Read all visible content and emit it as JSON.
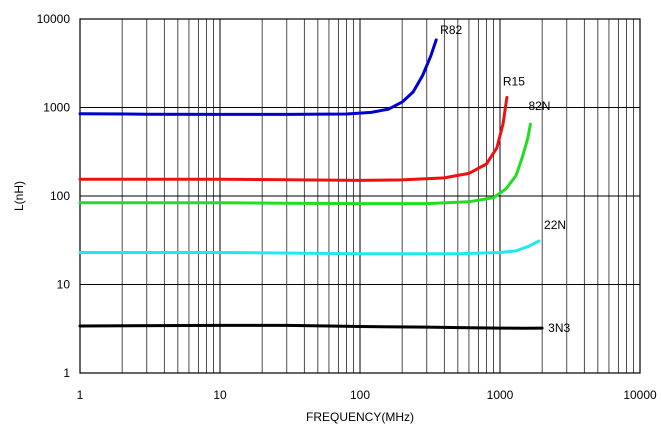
{
  "chart_data": {
    "type": "line",
    "xlabel": "FREQUENCY(MHz)",
    "ylabel": "L(nH)",
    "xscale": "log",
    "yscale": "log",
    "xlim": [
      1,
      10000
    ],
    "ylim": [
      1,
      10000
    ],
    "grid": true,
    "legend": "labels next to curve ends",
    "x_tick_labels": [
      "1",
      "10",
      "100",
      "1000",
      "10000"
    ],
    "y_tick_labels": [
      "1",
      "10",
      "100",
      "1000",
      "10000"
    ],
    "series": [
      {
        "name": "R82",
        "color": "#0000cc",
        "points": [
          [
            1,
            850
          ],
          [
            3,
            840
          ],
          [
            10,
            835
          ],
          [
            30,
            835
          ],
          [
            80,
            845
          ],
          [
            120,
            880
          ],
          [
            160,
            960
          ],
          [
            200,
            1150
          ],
          [
            240,
            1500
          ],
          [
            280,
            2300
          ],
          [
            320,
            3800
          ],
          [
            350,
            5800
          ]
        ]
      },
      {
        "name": "R15",
        "color": "#ee1111",
        "points": [
          [
            1,
            155
          ],
          [
            10,
            155
          ],
          [
            30,
            153
          ],
          [
            100,
            150
          ],
          [
            200,
            152
          ],
          [
            400,
            160
          ],
          [
            600,
            180
          ],
          [
            800,
            230
          ],
          [
            950,
            350
          ],
          [
            1050,
            650
          ],
          [
            1120,
            1300
          ]
        ]
      },
      {
        "name": "82N",
        "color": "#22dd22",
        "points": [
          [
            1,
            84
          ],
          [
            10,
            84
          ],
          [
            30,
            83
          ],
          [
            100,
            82
          ],
          [
            300,
            82
          ],
          [
            600,
            86
          ],
          [
            900,
            96
          ],
          [
            1100,
            120
          ],
          [
            1300,
            170
          ],
          [
            1450,
            280
          ],
          [
            1580,
            450
          ],
          [
            1650,
            650
          ]
        ]
      },
      {
        "name": "22N",
        "color": "#22e8ee",
        "points": [
          [
            1,
            23
          ],
          [
            10,
            23
          ],
          [
            100,
            22.3
          ],
          [
            500,
            22.3
          ],
          [
            1000,
            23
          ],
          [
            1300,
            24
          ],
          [
            1600,
            27
          ],
          [
            1900,
            31
          ]
        ]
      },
      {
        "name": "3N3",
        "color": "#000000",
        "points": [
          [
            1,
            3.4
          ],
          [
            10,
            3.45
          ],
          [
            30,
            3.45
          ],
          [
            60,
            3.4
          ],
          [
            100,
            3.35
          ],
          [
            300,
            3.3
          ],
          [
            600,
            3.25
          ],
          [
            1000,
            3.22
          ],
          [
            1500,
            3.2
          ],
          [
            2000,
            3.22
          ]
        ]
      }
    ]
  }
}
